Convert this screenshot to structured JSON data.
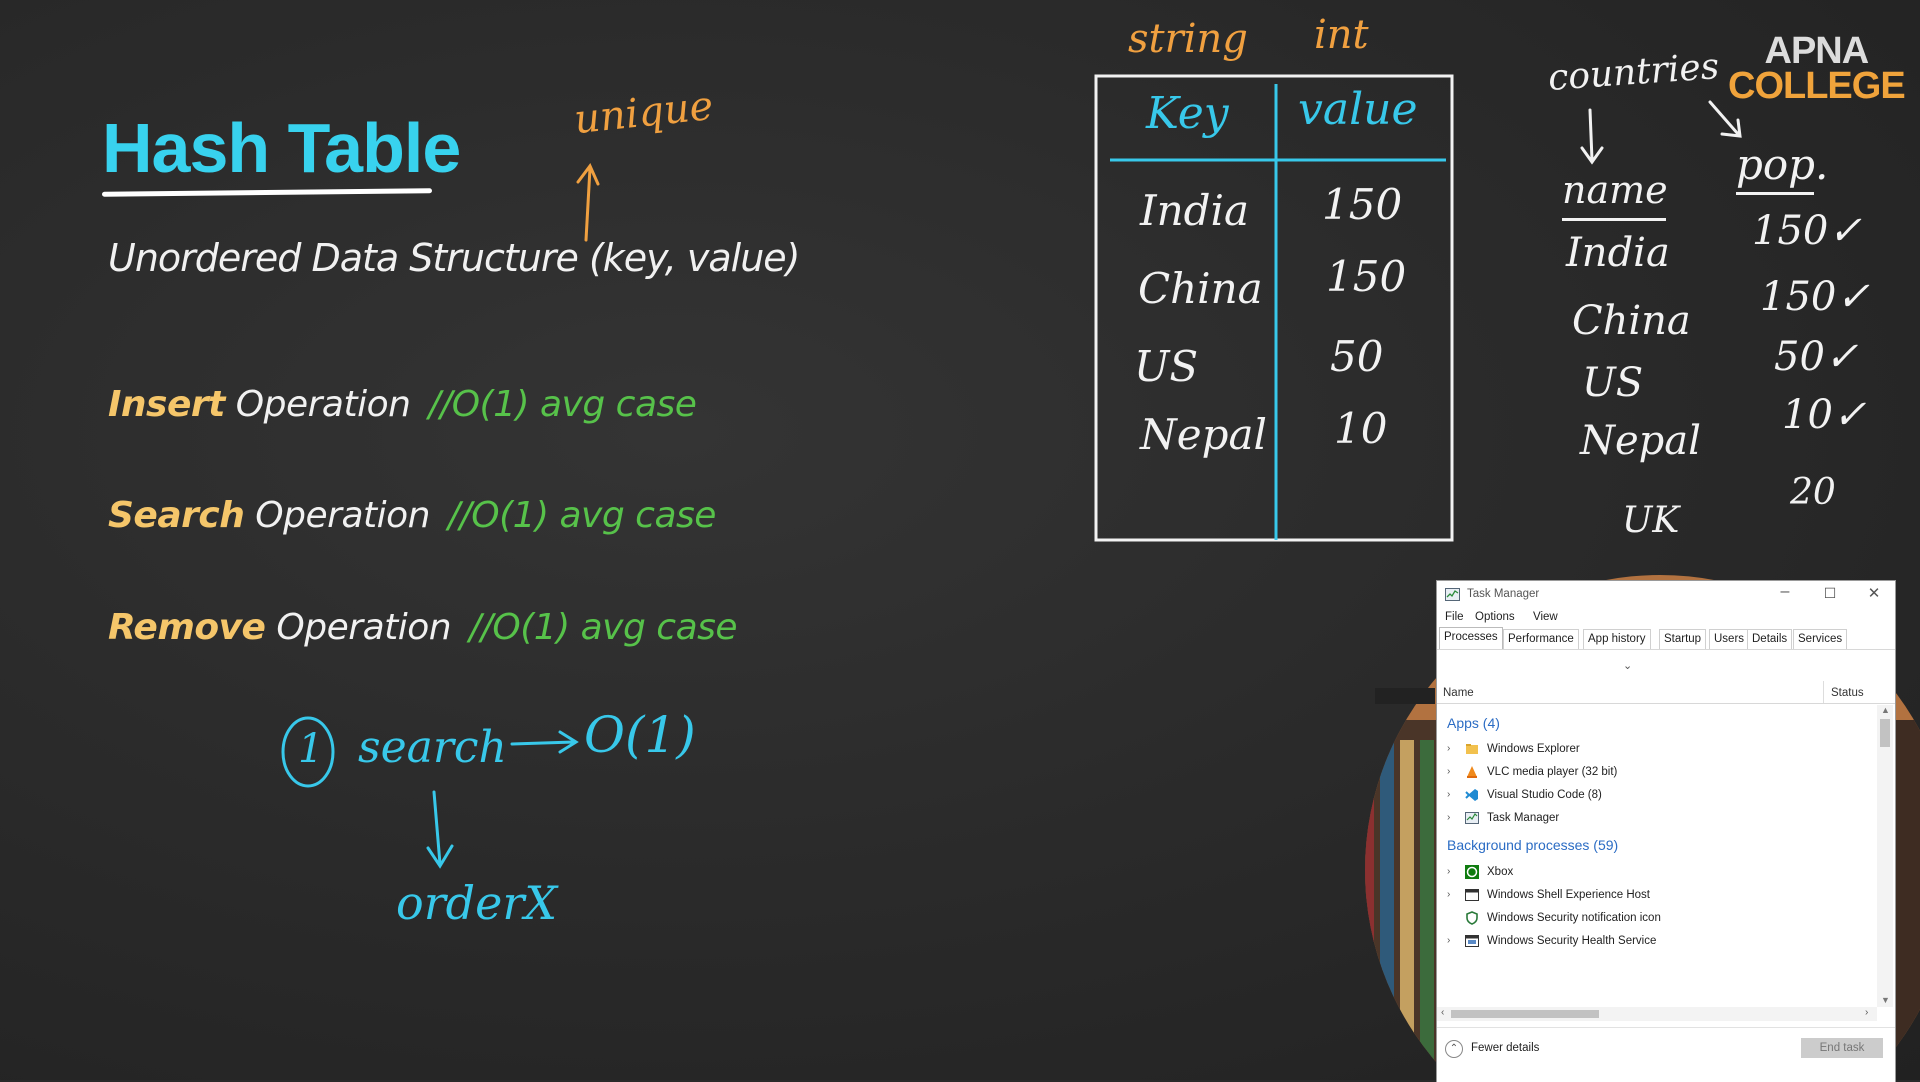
{
  "slide": {
    "title": "Hash Table",
    "subtitle": "Unordered Data Structure (key, value)",
    "operations": [
      {
        "keyword": "Insert",
        "word": " Operation",
        "comment": "//O(1) avg case"
      },
      {
        "keyword": "Search",
        "word": " Operation",
        "comment": "//O(1) avg case"
      },
      {
        "keyword": "Remove",
        "word": " Operation",
        "comment": "//O(1) avg case"
      }
    ],
    "logo": {
      "line1": "APNA",
      "line2": "COLLEGE"
    }
  },
  "annotations": {
    "unique": "unique",
    "string": "string",
    "int": "int",
    "table_header": {
      "key": "Key",
      "value": "value"
    },
    "table_rows": [
      {
        "key": "India",
        "value": "150"
      },
      {
        "key": "China",
        "value": "150"
      },
      {
        "key": "US",
        "value": "50"
      },
      {
        "key": "Nepal",
        "value": "10"
      }
    ],
    "countries": "countries",
    "name_header": "name",
    "pop_header": "pop.",
    "list_names": [
      "India",
      "China",
      "US",
      "Nepal",
      "UK"
    ],
    "list_pops": [
      "150✓",
      "150✓",
      "50✓",
      "10✓",
      "20"
    ],
    "circle_num": "1",
    "search_word": "search",
    "search_result": "O(1)",
    "order_x": "orderX"
  },
  "task_manager": {
    "title": "Task Manager",
    "menu": [
      "File",
      "Options",
      "View"
    ],
    "tabs": [
      "Processes",
      "Performance",
      "App history",
      "Startup",
      "Users",
      "Details",
      "Services"
    ],
    "columns": {
      "name": "Name",
      "status": "Status"
    },
    "apps_header": "Apps (4)",
    "apps": [
      {
        "name": "Windows Explorer",
        "icon": "folder-icon"
      },
      {
        "name": "VLC media player (32 bit)",
        "icon": "vlc-icon"
      },
      {
        "name": "Visual Studio Code (8)",
        "icon": "vscode-icon"
      },
      {
        "name": "Task Manager",
        "icon": "task-manager-icon"
      }
    ],
    "bg_header": "Background processes (59)",
    "background": [
      {
        "name": "Xbox",
        "icon": "xbox-icon",
        "expandable": true
      },
      {
        "name": "Windows Shell Experience Host",
        "icon": "window-icon",
        "expandable": true
      },
      {
        "name": "Windows Security notification icon",
        "icon": "shield-icon",
        "expandable": false
      },
      {
        "name": "Windows Security Health Service",
        "icon": "window-icon",
        "expandable": true
      }
    ],
    "fewer_details": "Fewer details",
    "end_task": "End task"
  }
}
